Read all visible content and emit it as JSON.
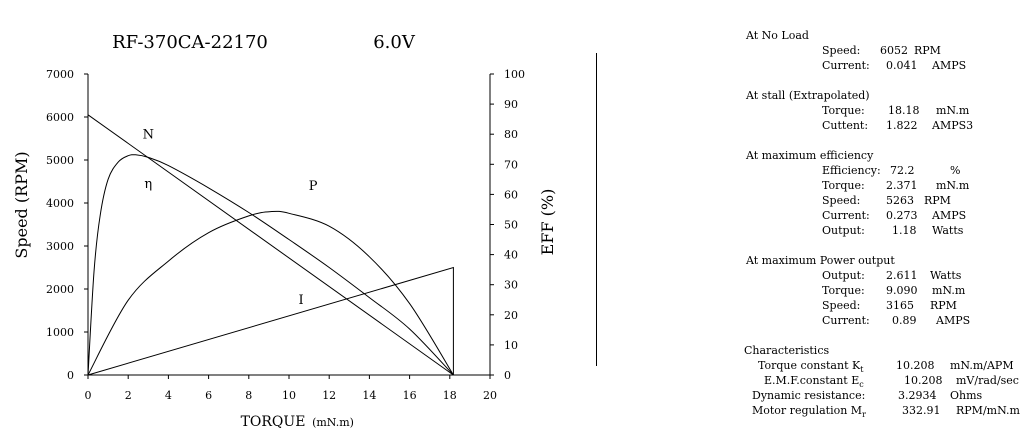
{
  "colors": {
    "stroke": "#000000",
    "background": "#ffffff"
  },
  "chart_data": {
    "type": "line",
    "title": "RF-370CA-22170",
    "voltage": "6.0V",
    "xlabel": "TORQUE",
    "xunit": "(mN.m)",
    "ylabel_left": "Speed (RPM)",
    "ylabel_right": "EFF (%)",
    "xlim": [
      0,
      20
    ],
    "ylim_left": [
      0,
      7000
    ],
    "ylim_right": [
      0,
      100
    ],
    "x_ticks": [
      "0",
      "2",
      "4",
      "6",
      "8",
      "10",
      "12",
      "14",
      "16",
      "18",
      "20"
    ],
    "y_left_ticks": [
      "0",
      "1000",
      "2000",
      "3000",
      "4000",
      "5000",
      "6000",
      "7000"
    ],
    "y_right_ticks": [
      "0",
      "10",
      "20",
      "30",
      "40",
      "50",
      "60",
      "70",
      "80",
      "90",
      "100"
    ],
    "grid": false,
    "series": [
      {
        "name": "N",
        "axis": "left",
        "x": [
          0,
          18.18
        ],
        "y": [
          6052,
          0
        ]
      },
      {
        "name": "I",
        "axis": "left",
        "x": [
          0,
          18.18,
          18.18
        ],
        "y": [
          0,
          2500,
          0
        ]
      },
      {
        "name": "P",
        "axis": "left",
        "x": [
          0,
          2,
          4,
          6,
          8,
          9.09,
          10,
          12,
          14,
          16,
          18.18
        ],
        "y": [
          0,
          1740,
          2650,
          3310,
          3700,
          3800,
          3760,
          3460,
          2750,
          1660,
          0
        ]
      },
      {
        "name": "η",
        "axis": "left",
        "x": [
          0,
          0.3,
          0.6,
          1,
          1.5,
          2,
          2.37,
          3,
          4,
          6,
          8,
          10,
          12,
          14,
          16,
          18.18
        ],
        "y": [
          0,
          2400,
          3700,
          4550,
          4950,
          5100,
          5120,
          5060,
          4870,
          4350,
          3780,
          3150,
          2500,
          1800,
          1070,
          0
        ]
      }
    ]
  },
  "specs": {
    "no_load": {
      "heading": "At No Load",
      "speed_label": "Speed:",
      "speed_value": "6052",
      "speed_unit": "RPM",
      "current_label": "Current:",
      "current_value": "0.041",
      "current_unit": "AMPS"
    },
    "stall": {
      "heading": "At stall (Extrapolated)",
      "torque_label": "Torque:",
      "torque_value": "18.18",
      "torque_unit": "mN.m",
      "current_label": "Cuttent:",
      "current_value": "1.822",
      "current_unit": "AMPS3"
    },
    "max_eff": {
      "heading": "At maximum efficiency",
      "eff_label": "Efficiency:",
      "eff_value": "72.2",
      "eff_unit": "%",
      "torque_label": "Torque:",
      "torque_value": "2.371",
      "torque_unit": "mN.m",
      "speed_label": "Speed:",
      "speed_value": "5263",
      "speed_unit": "RPM",
      "current_label": "Current:",
      "current_value": "0.273",
      "current_unit": "AMPS",
      "output_label": "Output:",
      "output_value": "1.18",
      "output_unit": "Watts"
    },
    "max_power": {
      "heading": "At maximum Power output",
      "output_label": "Output:",
      "output_value": "2.611",
      "output_unit": "Watts",
      "torque_label": "Torque:",
      "torque_value": "9.090",
      "torque_unit": "mN.m",
      "speed_label": "Speed:",
      "speed_value": "3165",
      "speed_unit": "RPM",
      "current_label": "Current:",
      "current_value": "0.89",
      "current_unit": "AMPS"
    },
    "characteristics": {
      "heading": "Characteristics",
      "kt_label": "Torque constant K",
      "kt_sub": "t",
      "kt_value": "10.208",
      "kt_unit": "mN.m/APM",
      "ke_label": "E.M.F.constant E",
      "ke_sub": "c",
      "ke_value": "10.208",
      "ke_unit": "mV/rad/sec",
      "res_label": "Dynamic resistance:",
      "res_value": "3.2934",
      "res_unit": "Ohms",
      "reg_label": "Motor regulation M",
      "reg_sub": "r",
      "reg_value": "332.91",
      "reg_unit": "RPM/mN.m"
    }
  }
}
